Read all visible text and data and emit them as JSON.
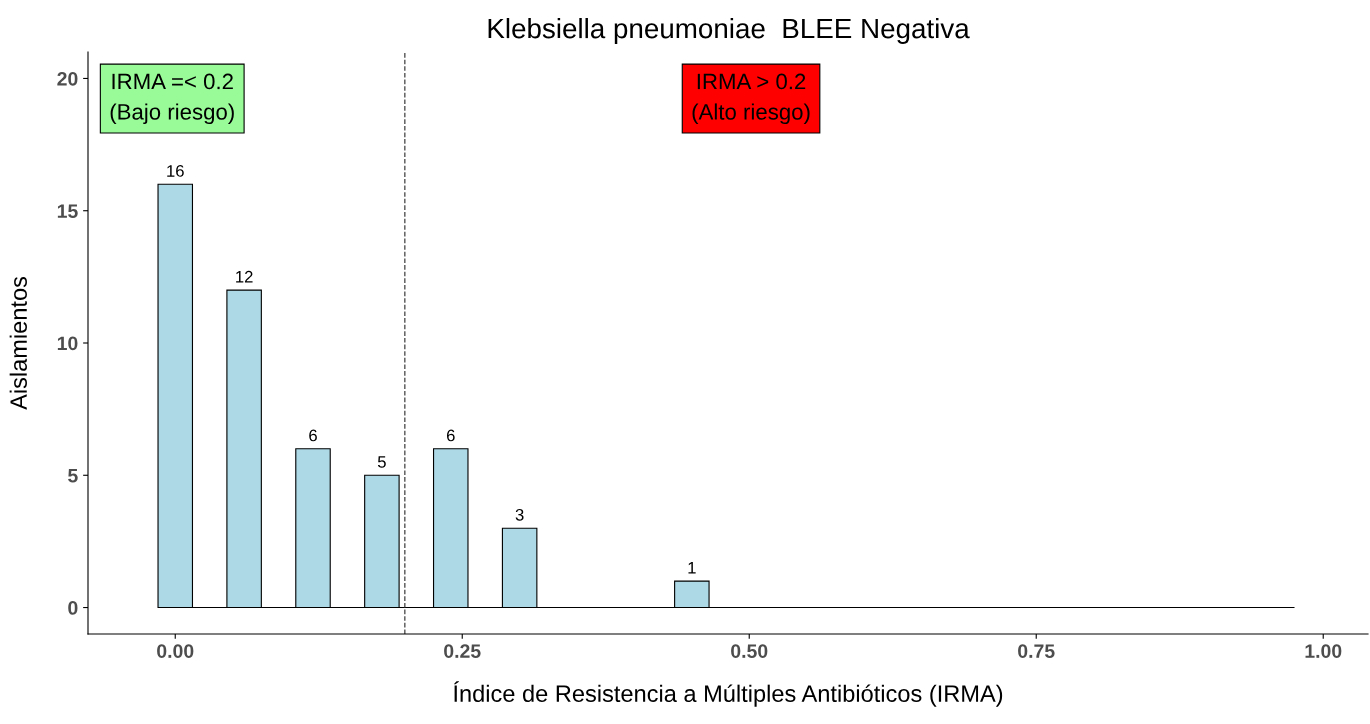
{
  "chart_data": {
    "type": "histogram",
    "title": "Klebsiella pneumoniae  BLEE Negativa",
    "xlabel": "Índice de Resistencia a Múltiples Antibióticos (IRMA)",
    "ylabel": "Aislamientos",
    "bins": [
      -0.015,
      0.015,
      0.045,
      0.075,
      0.105,
      0.135,
      0.165,
      0.195,
      0.225,
      0.255,
      0.285,
      0.315,
      0.345,
      0.375,
      0.405,
      0.435,
      0.465,
      0.495,
      0.525,
      0.555,
      0.585,
      0.615,
      0.645,
      0.675,
      0.705,
      0.735,
      0.765,
      0.795,
      0.825,
      0.855,
      0.885,
      0.915,
      0.945,
      0.975
    ],
    "values": [
      16,
      0,
      12,
      0,
      6,
      0,
      5,
      0,
      6,
      0,
      3,
      0,
      0,
      0,
      0,
      1,
      0,
      0,
      0,
      0,
      0,
      0,
      0,
      0,
      0,
      0,
      0,
      0,
      0,
      0,
      0,
      0,
      0
    ],
    "value_labels": [
      "16",
      null,
      "12",
      null,
      "6",
      null,
      "5",
      null,
      "6",
      null,
      "3",
      null,
      null,
      null,
      null,
      "1",
      null,
      null,
      null,
      null,
      null,
      null,
      null,
      null,
      null,
      null,
      null,
      null,
      null,
      null,
      null,
      null,
      null
    ],
    "color": "#add8e6",
    "xlim": [
      -0.076,
      1.039
    ],
    "xticks": [
      {
        "value": 0,
        "label": "0.00"
      },
      {
        "value": 0.25,
        "label": "0.25"
      },
      {
        "value": 0.5,
        "label": "0.50"
      },
      {
        "value": 0.75,
        "label": "0.75"
      },
      {
        "value": 1,
        "label": "1.00"
      }
    ],
    "ylim": [
      -1,
      21
    ],
    "yticks": [
      0,
      5,
      10,
      15,
      20
    ],
    "ref_lines": [
      {
        "axis": "x",
        "value": 0.2,
        "line_style": "dashed",
        "color": "#404040"
      }
    ],
    "annotations": [
      "IRMA =< 0.2\n(Bajo riesgo)",
      "IRMA > 0.2\n(Alto riesgo)"
    ],
    "legend": false
  }
}
